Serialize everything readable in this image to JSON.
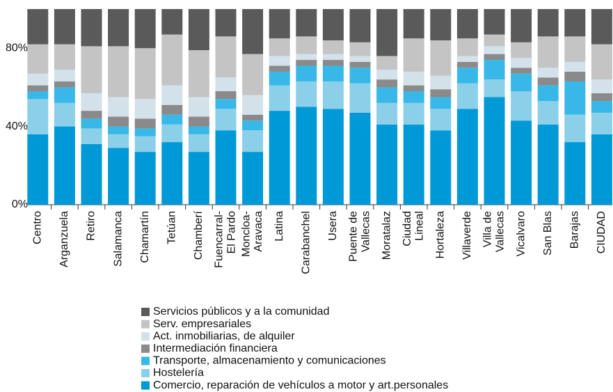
{
  "chart_data": {
    "type": "stacked_bar",
    "categories": [
      "Centro",
      "Arganzuela",
      "Retiro",
      "Salamanca",
      "Chamartín",
      "Tetúan",
      "Chamberí",
      "Fuencarral-\nEl Pardo",
      "Moncloa-\nAravaca",
      "Latina",
      "Carabanchel",
      "Usera",
      "Puente de\nVallecas",
      "Moratalaz",
      "Ciudad\nLineal",
      "Hortaleza",
      "Villaverde",
      "Villa de\nVallecas",
      "Vicalvaro",
      "San Blas",
      "Barajas",
      "CIUDAD"
    ],
    "series": [
      {
        "name": "Comercio, reparación de vehículos a motor y art.personales",
        "color": "#0099d8",
        "values": [
          36,
          40,
          31,
          29,
          27,
          32,
          27,
          38,
          27,
          48,
          50,
          49,
          47,
          41,
          41,
          38,
          49,
          55,
          43,
          41,
          32,
          36
        ]
      },
      {
        "name": "Hostelería",
        "color": "#8ccfe8",
        "values": [
          18,
          12,
          8,
          7,
          8,
          9,
          9,
          11,
          11,
          13,
          13,
          14,
          15,
          11,
          11,
          11,
          13,
          9,
          15,
          12,
          14,
          11
        ]
      },
      {
        "name": "Transporte, almacenamiento y comunicaciones",
        "color": "#38b8e8",
        "values": [
          4,
          8,
          5,
          4,
          4,
          5,
          4,
          5,
          5,
          7,
          8,
          8,
          8,
          8,
          6,
          6,
          8,
          10,
          9,
          8,
          17,
          6
        ]
      },
      {
        "name": "Intermediación financiera",
        "color": "#8a8a8a",
        "values": [
          3,
          3,
          4,
          5,
          5,
          5,
          5,
          4,
          3,
          3,
          3,
          3,
          3,
          4,
          3,
          4,
          3,
          3,
          3,
          4,
          5,
          4
        ]
      },
      {
        "name": "Act. inmobiliarias, de alquiler",
        "color": "#d3e1ea",
        "values": [
          6,
          6,
          9,
          10,
          10,
          10,
          10,
          7,
          10,
          5,
          3,
          3,
          3,
          5,
          7,
          7,
          3,
          4,
          5,
          5,
          5,
          7
        ]
      },
      {
        "name": "Serv. empresariales",
        "color": "#c4c4c4",
        "values": [
          15,
          13,
          24,
          26,
          26,
          26,
          24,
          21,
          21,
          9,
          9,
          7,
          7,
          7,
          17,
          18,
          9,
          6,
          8,
          16,
          13,
          18
        ]
      },
      {
        "name": "Servicios públicos y a la comunidad",
        "color": "#5a5a5a",
        "values": [
          18,
          18,
          19,
          19,
          20,
          13,
          21,
          14,
          23,
          15,
          14,
          16,
          17,
          24,
          15,
          16,
          15,
          13,
          17,
          14,
          14,
          18
        ]
      }
    ],
    "ylim": [
      0,
      100
    ],
    "yticks": [
      {
        "value": 0,
        "label": "0%"
      },
      {
        "value": 40,
        "label": "40%"
      },
      {
        "value": 80,
        "label": "80%"
      }
    ]
  }
}
